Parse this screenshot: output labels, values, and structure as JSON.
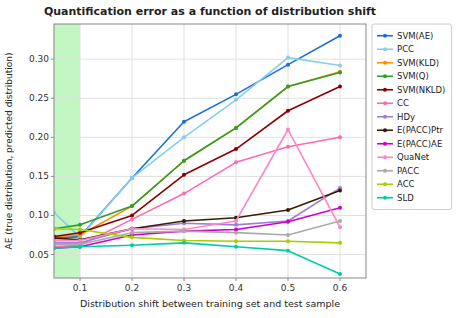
{
  "chart_data": {
    "type": "line",
    "title": "Quantification error as a function of distribution shift",
    "xlabel": "Distribution shift between training set and test sample",
    "ylabel": "AE (true distribution, predicted distribution)",
    "xlim": [
      0.05,
      0.65
    ],
    "ylim": [
      0.02,
      0.345
    ],
    "xticks": [
      0.1,
      0.2,
      0.3,
      0.4,
      0.5,
      0.6
    ],
    "yticks": [
      0.05,
      {
        "value": 0.1,
        "label": "0.10"
      },
      0.15,
      {
        "value": 0.2,
        "label": "0.20"
      },
      0.25,
      {
        "value": 0.3,
        "label": "0.30"
      }
    ],
    "grid": true,
    "legend": "right",
    "marker": "circle",
    "span": {
      "x": [
        0.05,
        0.1
      ],
      "color": "#90ee90"
    },
    "x": [
      0.05,
      0.1,
      0.2,
      0.3,
      0.4,
      0.5,
      0.6
    ],
    "series": [
      {
        "name": "SVM(AE)",
        "color": "#1a6fdf",
        "values": [
          0.071,
          0.073,
          0.148,
          0.22,
          0.255,
          0.293,
          0.33
        ]
      },
      {
        "name": "PCC",
        "color": "#87ceeb",
        "values": [
          0.104,
          0.072,
          0.148,
          0.2,
          0.248,
          0.302,
          0.292
        ]
      },
      {
        "name": "SVM(KLD)",
        "color": "#ff8c00",
        "values": [
          0.073,
          0.075,
          0.112,
          0.17,
          0.212,
          0.265,
          0.284
        ]
      },
      {
        "name": "SVM(Q)",
        "color": "#2ca02c",
        "values": [
          0.083,
          0.088,
          0.112,
          0.17,
          0.212,
          0.265,
          0.283
        ]
      },
      {
        "name": "SVM(NKLD)",
        "color": "#8b0000",
        "values": [
          0.073,
          0.078,
          0.1,
          0.152,
          0.185,
          0.234,
          0.265
        ]
      },
      {
        "name": "CC",
        "color": "#ff69b4",
        "values": [
          0.06,
          0.062,
          0.095,
          0.128,
          0.168,
          0.188,
          0.2
        ]
      },
      {
        "name": "HDy",
        "color": "#9b7fd4",
        "values": [
          0.065,
          0.065,
          0.083,
          0.09,
          0.088,
          0.093,
          0.135
        ]
      },
      {
        "name": "E(PACC)Ptr",
        "color": "#3b1a0a",
        "values": [
          0.071,
          0.069,
          0.083,
          0.093,
          0.097,
          0.107,
          0.132
        ]
      },
      {
        "name": "E(PACC)AE",
        "color": "#cc00cc",
        "values": [
          0.058,
          0.06,
          0.075,
          0.08,
          0.082,
          0.092,
          0.11
        ]
      },
      {
        "name": "QuaNet",
        "color": "#ff85c2",
        "values": [
          0.068,
          0.068,
          0.083,
          0.082,
          0.093,
          0.21,
          0.085
        ]
      },
      {
        "name": "PACC",
        "color": "#aaaaaa",
        "values": [
          0.063,
          0.063,
          0.078,
          0.08,
          0.078,
          0.075,
          0.093
        ]
      },
      {
        "name": "ACC",
        "color": "#aacc00",
        "values": [
          0.083,
          0.082,
          0.072,
          0.068,
          0.067,
          0.067,
          0.065
        ]
      },
      {
        "name": "SLD",
        "color": "#00ccaa",
        "values": [
          0.058,
          0.06,
          0.062,
          0.065,
          0.06,
          0.055,
          0.025
        ]
      }
    ]
  }
}
